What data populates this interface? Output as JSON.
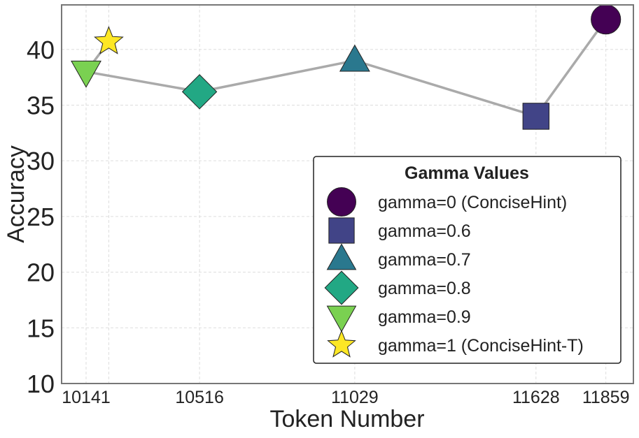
{
  "chart_data": {
    "type": "scatter",
    "xlabel": "Token Number",
    "ylabel": "Accuracy",
    "ylim": [
      10,
      44
    ],
    "yticks": [
      10,
      15,
      20,
      25,
      30,
      35,
      40
    ],
    "xticks": [
      10141,
      10516,
      11029,
      11628,
      11859
    ],
    "xlim": [
      10060,
      11950
    ],
    "grid": true,
    "legend_title": "Gamma Values",
    "legend_position": "lower-right",
    "line_color": "#aaaaaa",
    "series": [
      {
        "name": "gamma=0 (ConciseHint)",
        "x": 11859,
        "y": 42.7,
        "marker": "circle",
        "color": "#440154"
      },
      {
        "name": "gamma=0.6",
        "x": 11628,
        "y": 34.0,
        "marker": "square",
        "color": "#414487"
      },
      {
        "name": "gamma=0.7",
        "x": 11029,
        "y": 39.0,
        "marker": "triangle-up",
        "color": "#2a788e"
      },
      {
        "name": "gamma=0.8",
        "x": 10516,
        "y": 36.2,
        "marker": "diamond",
        "color": "#22a884"
      },
      {
        "name": "gamma=0.9",
        "x": 10141,
        "y": 38.0,
        "marker": "triangle-down",
        "color": "#7ad151"
      },
      {
        "name": "gamma=1 (ConciseHint-T)",
        "x": 10216,
        "y": 40.7,
        "marker": "star",
        "color": "#fde725"
      }
    ],
    "line_order": [
      4,
      3,
      2,
      1,
      0
    ],
    "extra_line": [
      4,
      5
    ]
  }
}
